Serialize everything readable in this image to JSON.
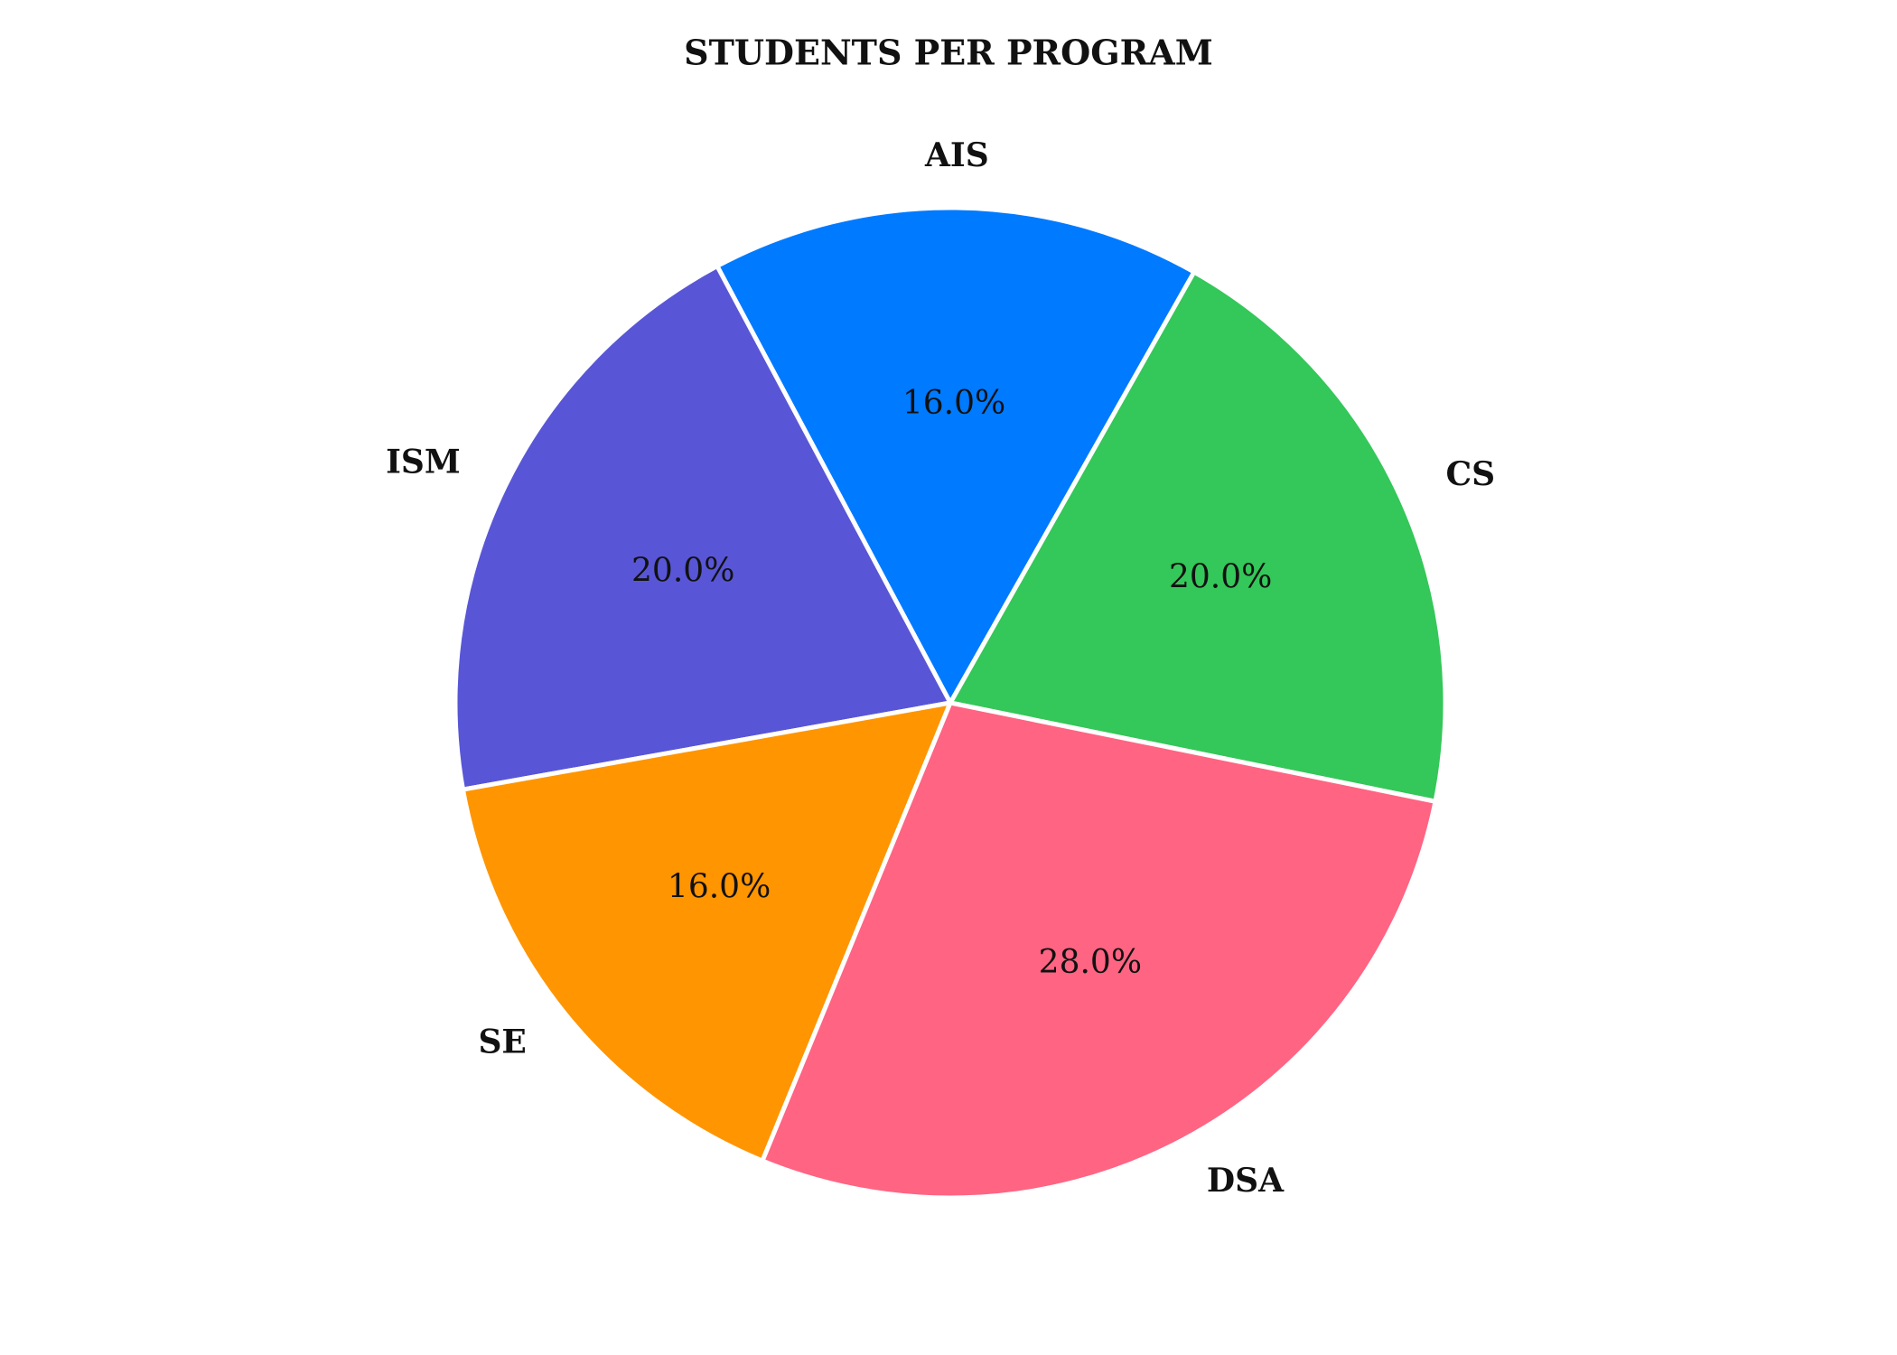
{
  "chart_data": {
    "type": "pie",
    "title": "Students per Program",
    "categories": [
      "CS",
      "AIS",
      "ISM",
      "SE",
      "DSA"
    ],
    "values": [
      20.0,
      16.0,
      20.0,
      16.0,
      28.0
    ],
    "percent_labels": [
      "20.0%",
      "16.0%",
      "20.0%",
      "16.0%",
      "28.0%"
    ],
    "colors": [
      "#34c759",
      "#007aff",
      "#5856d6",
      "#ff9500",
      "#ff6482"
    ],
    "start_angle_deg": -11.5,
    "direction": "counterclockwise",
    "legend": "none"
  }
}
